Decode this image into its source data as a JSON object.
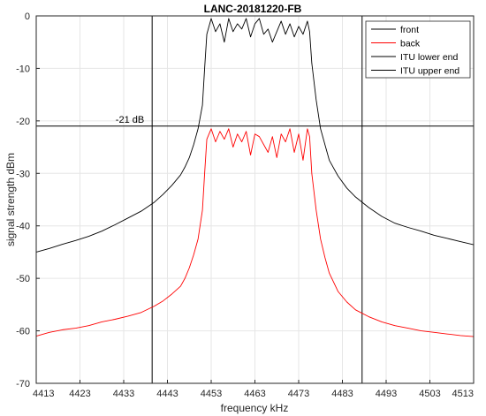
{
  "chart_data": {
    "type": "line",
    "title": "LANC-20181220-FB",
    "xlabel": "frequency kHz",
    "ylabel": "signal strength dBm",
    "xlim": [
      4413,
      4513
    ],
    "ylim": [
      -70,
      0
    ],
    "xticks": [
      4413,
      4423,
      4433,
      4443,
      4453,
      4463,
      4473,
      4483,
      4493,
      4503,
      4513
    ],
    "yticks": [
      -70,
      -60,
      -50,
      -40,
      -30,
      -20,
      -10,
      0
    ],
    "grid": true,
    "legend_position": "top-right",
    "annotation": {
      "text": "-21 dB",
      "x": 4417,
      "y": -21
    },
    "hline": -21,
    "series": [
      {
        "name": "front",
        "color": "#000000",
        "x": [
          4413,
          4416,
          4419,
          4422,
          4425,
          4428,
          4431,
          4434,
          4437,
          4440,
          4442,
          4444,
          4446,
          4447,
          4448,
          4449,
          4450,
          4451,
          4451.5,
          4452,
          4453,
          4454,
          4455,
          4456,
          4457,
          4458,
          4459,
          4460,
          4461,
          4462,
          4463,
          4464,
          4465,
          4466,
          4467,
          4468,
          4469,
          4470,
          4471,
          4472,
          4473,
          4474,
          4475,
          4475.5,
          4476,
          4477,
          4478,
          4479,
          4480,
          4482,
          4484,
          4486,
          4489,
          4492,
          4495,
          4498,
          4501,
          4504,
          4507,
          4510,
          4513
        ],
        "y": [
          -45,
          -44.3,
          -43.5,
          -42.8,
          -42,
          -41,
          -39.8,
          -38.5,
          -37.2,
          -35.5,
          -34,
          -32.3,
          -30.3,
          -28.8,
          -27,
          -24.5,
          -21.5,
          -17,
          -10,
          -3.5,
          -0.5,
          -3,
          -1.5,
          -5,
          -0.5,
          -3,
          -1.5,
          -2.5,
          -0.5,
          -4,
          -1.5,
          -0.5,
          -3.5,
          -2.5,
          -5,
          -3,
          -1,
          -3.5,
          -1.5,
          -4,
          -2,
          -3.5,
          -1,
          -3,
          -9,
          -16,
          -21.5,
          -24.5,
          -27.5,
          -30.5,
          -32.8,
          -34.5,
          -36.5,
          -38.2,
          -39.5,
          -40.3,
          -41,
          -41.8,
          -42.4,
          -43,
          -43.6
        ]
      },
      {
        "name": "back",
        "color": "#ff0000",
        "x": [
          4413,
          4416,
          4419,
          4422,
          4425,
          4428,
          4431,
          4434,
          4437,
          4440,
          4442,
          4444,
          4446,
          4447,
          4448,
          4449,
          4450,
          4451,
          4451.5,
          4452,
          4453,
          4454,
          4455,
          4456,
          4457,
          4458,
          4459,
          4460,
          4461,
          4462,
          4463,
          4464,
          4465,
          4466,
          4467,
          4468,
          4469,
          4470,
          4471,
          4472,
          4473,
          4474,
          4475,
          4475.5,
          4476,
          4477,
          4478,
          4479,
          4480,
          4482,
          4484,
          4486,
          4489,
          4492,
          4495,
          4498,
          4501,
          4504,
          4507,
          4510,
          4513
        ],
        "y": [
          -61,
          -60.3,
          -59.8,
          -59.5,
          -59,
          -58.3,
          -57.8,
          -57.2,
          -56.5,
          -55.3,
          -54.3,
          -53,
          -51.5,
          -50,
          -48,
          -45.5,
          -42.5,
          -37,
          -30,
          -23.5,
          -21.5,
          -24,
          -22,
          -23.5,
          -21.5,
          -25,
          -22.5,
          -24,
          -22,
          -26.5,
          -22.5,
          -23,
          -24.5,
          -26,
          -23,
          -27,
          -22.5,
          -24,
          -21.5,
          -26,
          -22.5,
          -27.5,
          -21.5,
          -23,
          -30,
          -37,
          -42.5,
          -46,
          -49,
          -52.5,
          -54.5,
          -56,
          -57.3,
          -58.3,
          -59,
          -59.5,
          -60,
          -60.3,
          -60.6,
          -60.9,
          -61.1
        ]
      },
      {
        "name": "ITU lower end",
        "color": "#000000",
        "vline": 4439.5
      },
      {
        "name": "ITU upper end",
        "color": "#000000",
        "vline": 4487.5
      }
    ]
  }
}
